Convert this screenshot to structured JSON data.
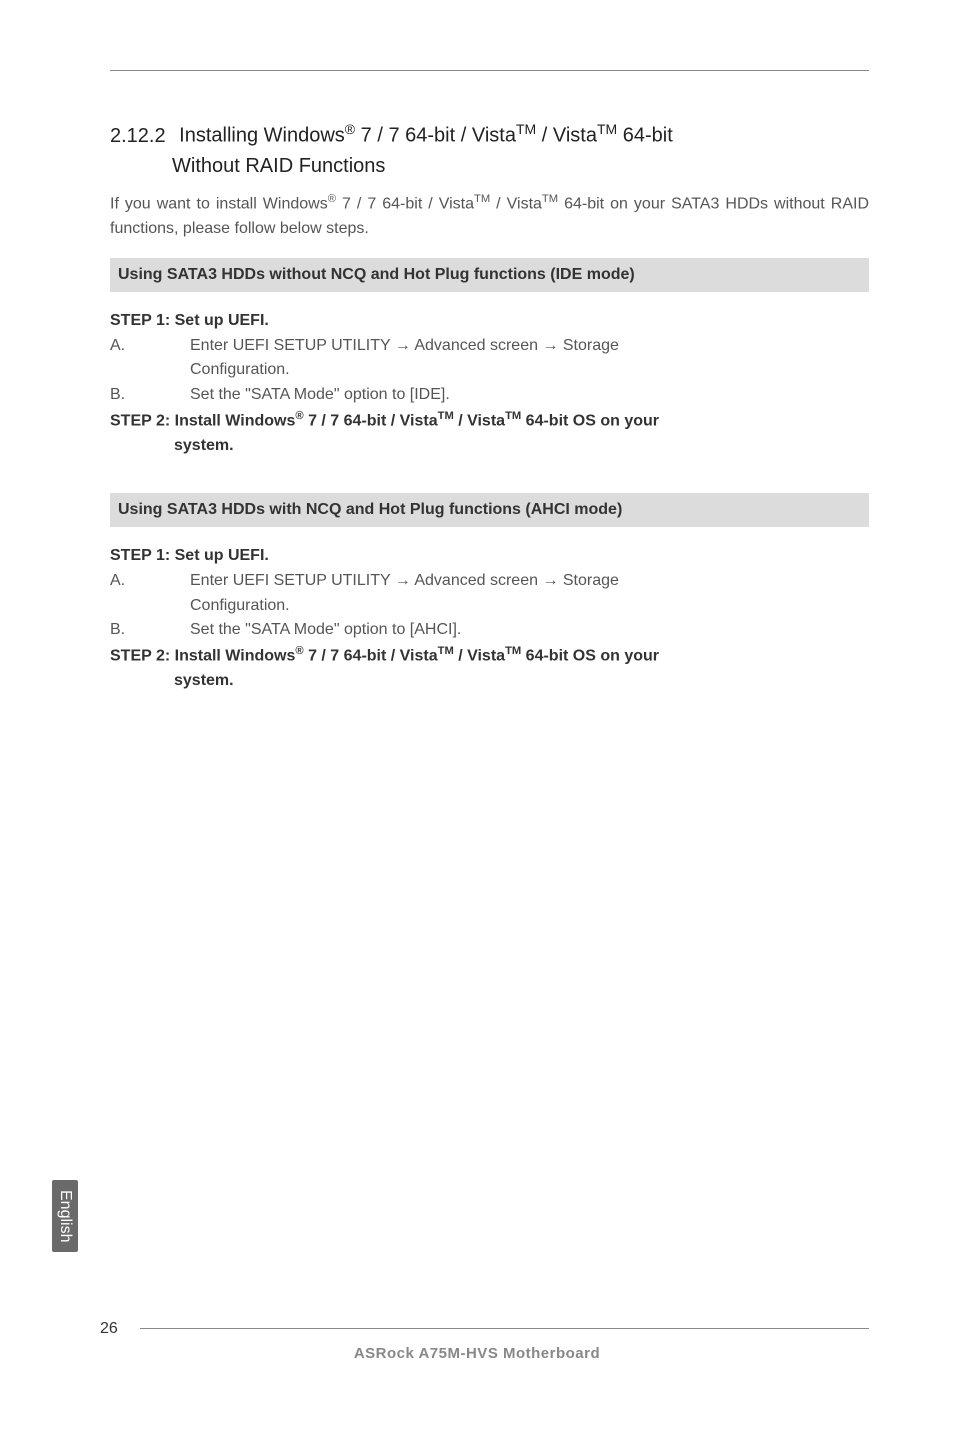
{
  "section": {
    "number": "2.12.2",
    "title_prefix": "Installing Windows",
    "title_mid1": " 7 / 7 64-bit / Vista",
    "title_mid2": " / Vista",
    "title_end": " 64-bit",
    "title_line2": "Without RAID Functions",
    "reg": "®",
    "tm": "TM"
  },
  "intro": {
    "p1_a": "If you want to install Windows",
    "p1_b": " 7 / 7 64-bit / Vista",
    "p1_c": " / Vista",
    "p1_d": " 64-bit on your SATA3 HDDs without RAID functions, please follow below steps."
  },
  "box1": "Using SATA3 HDDs without NCQ and Hot Plug functions (IDE mode)",
  "box2": "Using SATA3 HDDs with NCQ and Hot Plug functions (AHCI mode)",
  "step1_title": "STEP 1: Set up UEFI.",
  "s1a_letter": "A.",
  "s1a_text_a": "Enter UEFI SETUP UTILITY ",
  "s1a_text_b": " Advanced screen ",
  "s1a_text_c": " Storage",
  "s1a_text_d": "Configuration.",
  "s1b_letter": "B.",
  "s1b_text_ide": "Set the \"SATA Mode\" option to [IDE].",
  "s1b_text_ahci": "Set the \"SATA Mode\" option to [AHCI].",
  "step2_a": "STEP 2: Install Windows",
  "step2_b": " 7 / 7 64-bit / Vista",
  "step2_c": " / Vista",
  "step2_d": " 64-bit OS on your",
  "step2_e": "system.",
  "arrow": "→",
  "side_label": "English",
  "page_number": "26",
  "footer": "ASRock  A75M-HVS  Motherboard"
}
